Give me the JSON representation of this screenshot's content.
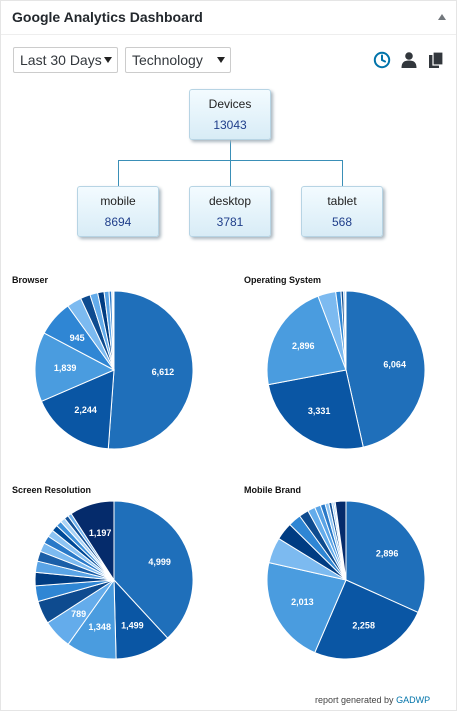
{
  "header": {
    "title": "Google Analytics Dashboard"
  },
  "controls": {
    "period": "Last 30 Days",
    "report": "Technology"
  },
  "toolbar": {
    "icons": [
      "clock-icon",
      "user-icon",
      "copy-icon"
    ]
  },
  "tree": {
    "root": {
      "label": "Devices",
      "value": "13043"
    },
    "children": [
      {
        "label": "mobile",
        "value": "8694"
      },
      {
        "label": "desktop",
        "value": "3781"
      },
      {
        "label": "tablet",
        "value": "568"
      }
    ]
  },
  "colors": {
    "node_value": "#1f3e8a",
    "connector": "#3a8fb7",
    "link": "#0073aa"
  },
  "chart_data": [
    {
      "type": "pie",
      "title": "Browser",
      "slices": [
        6612,
        2244,
        1839,
        945,
        390,
        260,
        205,
        170,
        130,
        70,
        35,
        25
      ],
      "labels": [
        "6,612",
        "2,244",
        "1,839",
        "945",
        "",
        "",
        "",
        "",
        "",
        "",
        "",
        ""
      ],
      "colors": [
        "#1f6fba",
        "#0a56a4",
        "#4a9cdf",
        "#2f86d4",
        "#7cbaf0",
        "#0e4b8f",
        "#64aceb",
        "#003c82",
        "#5aa4e6",
        "#2979c8",
        "#8dc4f3",
        "#a9d3f6"
      ]
    },
    {
      "type": "pie",
      "title": "Operating System",
      "slices": [
        6064,
        3331,
        2896,
        480,
        140,
        70,
        42,
        20
      ],
      "labels": [
        "6,064",
        "3,331",
        "2,896",
        "",
        "",
        "",
        "",
        ""
      ],
      "colors": [
        "#1f6fba",
        "#0a56a4",
        "#4a9cdf",
        "#7cbaf0",
        "#2f86d4",
        "#0e4b8f",
        "#64aceb",
        "#003c82"
      ]
    },
    {
      "type": "pie",
      "title": "Screen Resolution",
      "slices": [
        4999,
        1499,
        1348,
        789,
        620,
        420,
        360,
        300,
        270,
        240,
        210,
        190,
        170,
        150,
        130,
        115,
        100,
        1197
      ],
      "labels": [
        "4,999",
        "1,499",
        "1,348",
        "789",
        "",
        "",
        "",
        "",
        "",
        "",
        "",
        "",
        "",
        "",
        "",
        "",
        "",
        "1,197"
      ],
      "colors": [
        "#1f6fba",
        "#0a56a4",
        "#4a9cdf",
        "#64aceb",
        "#0e4b8f",
        "#2f86d4",
        "#003c82",
        "#5aa4e6",
        "#1b5fa8",
        "#7cbaf0",
        "#2979c8",
        "#8dc4f3",
        "#004a97",
        "#3d90d9",
        "#a9d3f6",
        "#15549a",
        "#6fb2ee",
        "#052b6b"
      ]
    },
    {
      "type": "pie",
      "title": "Mobile Brand",
      "slices": [
        2896,
        2258,
        2013,
        480,
        330,
        240,
        180,
        140,
        110,
        90,
        70,
        55,
        40,
        25,
        200
      ],
      "labels": [
        "2,896",
        "2,258",
        "2,013",
        "",
        "",
        "",
        "",
        "",
        "",
        "",
        "",
        "",
        "",
        "",
        ""
      ],
      "colors": [
        "#1f6fba",
        "#0a56a4",
        "#4a9cdf",
        "#7cbaf0",
        "#003c82",
        "#2f86d4",
        "#0e4b8f",
        "#64aceb",
        "#5aa4e6",
        "#2979c8",
        "#8dc4f3",
        "#15549a",
        "#a9d3f6",
        "#3d90d9",
        "#052b6b"
      ]
    }
  ],
  "footer": {
    "text": "report generated by",
    "link": "GADWP"
  }
}
